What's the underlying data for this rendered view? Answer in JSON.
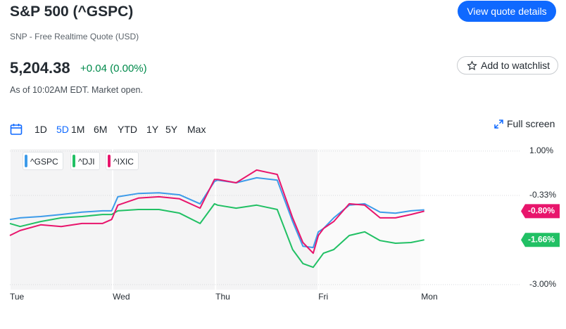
{
  "header": {
    "title": "S&P 500 (^GSPC)",
    "subtitle": "SNP - Free Realtime Quote (USD)",
    "price": "5,204.38",
    "change": "+0.04 (0.00%)",
    "as_of": "As of 10:02AM EDT. Market open."
  },
  "buttons": {
    "quote": "View quote details",
    "watchlist": "Add to watchlist",
    "fullscreen": "Full screen"
  },
  "ranges": [
    "1D",
    "5D",
    "1M",
    "6M",
    "YTD",
    "1Y",
    "5Y",
    "Max"
  ],
  "active_range": "5D",
  "chart_data": {
    "type": "line",
    "x": [
      0,
      0.1,
      0.3,
      0.5,
      0.7,
      0.9,
      0.99,
      1.05,
      1.25,
      1.45,
      1.65,
      1.85,
      1.99,
      2.02,
      2.2,
      2.4,
      2.6,
      2.75,
      2.85,
      2.95,
      3.0,
      3.05,
      3.15,
      3.3,
      3.45,
      3.6,
      3.75,
      3.9,
      4.03
    ],
    "xlim": [
      0,
      4.97
    ],
    "xticks": [
      {
        "value": 0,
        "label": "Tue"
      },
      {
        "value": 1,
        "label": "Wed"
      },
      {
        "value": 2,
        "label": "Thu"
      },
      {
        "value": 3,
        "label": "Fri"
      },
      {
        "value": 4,
        "label": "Mon"
      }
    ],
    "ylim": [
      -3.15,
      1.06
    ],
    "yticks": [
      {
        "value": 1,
        "label": "1.00%"
      },
      {
        "value": -0.33,
        "label": "-0.33%"
      },
      {
        "value": -3,
        "label": "-3.00%"
      }
    ],
    "series": [
      {
        "name": "^GSPC",
        "color": "#3d9be9",
        "values": [
          -1.05,
          -1.0,
          -0.96,
          -0.9,
          -0.83,
          -0.79,
          -0.79,
          -0.37,
          -0.27,
          -0.25,
          -0.31,
          -0.58,
          0.09,
          0.13,
          0.05,
          0.2,
          0.13,
          -1.11,
          -1.85,
          -1.89,
          -1.42,
          -1.32,
          -1.0,
          -0.62,
          -0.58,
          -0.83,
          -0.86,
          -0.79,
          -0.76
        ]
      },
      {
        "name": "^DJI",
        "color": "#21c064",
        "values": [
          -1.17,
          -1.26,
          -1.11,
          -1.0,
          -0.96,
          -0.9,
          -0.9,
          -0.79,
          -0.75,
          -0.75,
          -0.86,
          -1.17,
          -0.58,
          -0.62,
          -0.71,
          -0.62,
          -0.75,
          -1.95,
          -2.37,
          -2.48,
          -2.27,
          -2.06,
          -1.95,
          -1.53,
          -1.42,
          -1.68,
          -1.76,
          -1.74,
          -1.66
        ],
        "value_labels": [
          null,
          null,
          null,
          null,
          null,
          null,
          null,
          null,
          null,
          null,
          null,
          null,
          null,
          null,
          null,
          null,
          null,
          null,
          null,
          null,
          null,
          null,
          null,
          null,
          null,
          null,
          null,
          null,
          "-1.66%"
        ]
      },
      {
        "name": "^IXIC",
        "color": "#e8156c",
        "values": [
          -1.53,
          -1.38,
          -1.21,
          -1.26,
          -1.17,
          -1.17,
          -1.05,
          -0.62,
          -0.41,
          -0.37,
          -0.43,
          -0.71,
          0.15,
          0.15,
          0.05,
          0.43,
          0.3,
          -1.0,
          -1.74,
          -2.06,
          -1.53,
          -1.32,
          -1.11,
          -0.58,
          -0.62,
          -1.0,
          -1.0,
          -0.9,
          -0.8
        ],
        "value_labels": [
          null,
          null,
          null,
          null,
          null,
          null,
          null,
          null,
          null,
          null,
          null,
          null,
          null,
          null,
          null,
          null,
          null,
          null,
          null,
          null,
          null,
          null,
          null,
          null,
          null,
          null,
          null,
          null,
          "-0.80%"
        ]
      }
    ],
    "grid": true
  }
}
